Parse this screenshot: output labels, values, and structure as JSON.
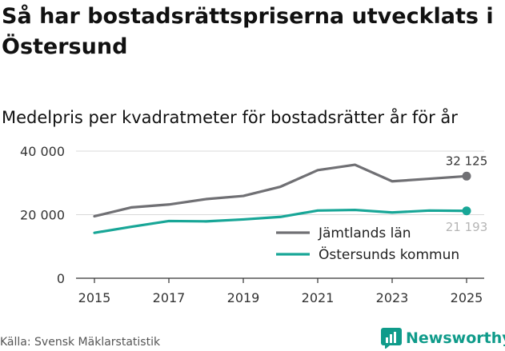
{
  "header": {
    "title": "Så har bostadsrättspriserna utvecklats i Östersund",
    "subtitle": "Medelpris per kvadratmeter för bostadsrätter år för år"
  },
  "footer": {
    "source": "Källa: Svensk Mäklarstatistik",
    "brand": "Newsworthy"
  },
  "chart_data": {
    "type": "line",
    "title": "Så har bostadsrättspriserna utvecklats i Östersund",
    "subtitle": "Medelpris per kvadratmeter för bostadsrätter år för år",
    "xlabel": "",
    "ylabel": "",
    "x": [
      2015,
      2016,
      2017,
      2018,
      2019,
      2020,
      2021,
      2022,
      2023,
      2024,
      2025
    ],
    "x_ticks": [
      2015,
      2017,
      2019,
      2021,
      2023,
      2025
    ],
    "x_tick_labels": [
      "2015",
      "2017",
      "2019",
      "2021",
      "2023",
      "2025"
    ],
    "xlim": [
      2015,
      2025
    ],
    "ylim": [
      0,
      40000
    ],
    "y_ticks": [
      0,
      20000,
      40000
    ],
    "y_tick_labels": [
      "0",
      "20 000",
      "40 000"
    ],
    "grid": true,
    "legend_position": "bottom-right",
    "series": [
      {
        "name": "Jämtlands län",
        "color": "#707074",
        "values": [
          19500,
          22300,
          23200,
          24900,
          25900,
          28800,
          34000,
          35700,
          30500,
          31300,
          32125
        ],
        "end_label": "32 125"
      },
      {
        "name": "Östersunds kommun",
        "color": "#18a697",
        "values": [
          14300,
          16200,
          18000,
          17900,
          18500,
          19300,
          21300,
          21500,
          20700,
          21300,
          21193
        ],
        "end_label": "21 193"
      }
    ]
  }
}
